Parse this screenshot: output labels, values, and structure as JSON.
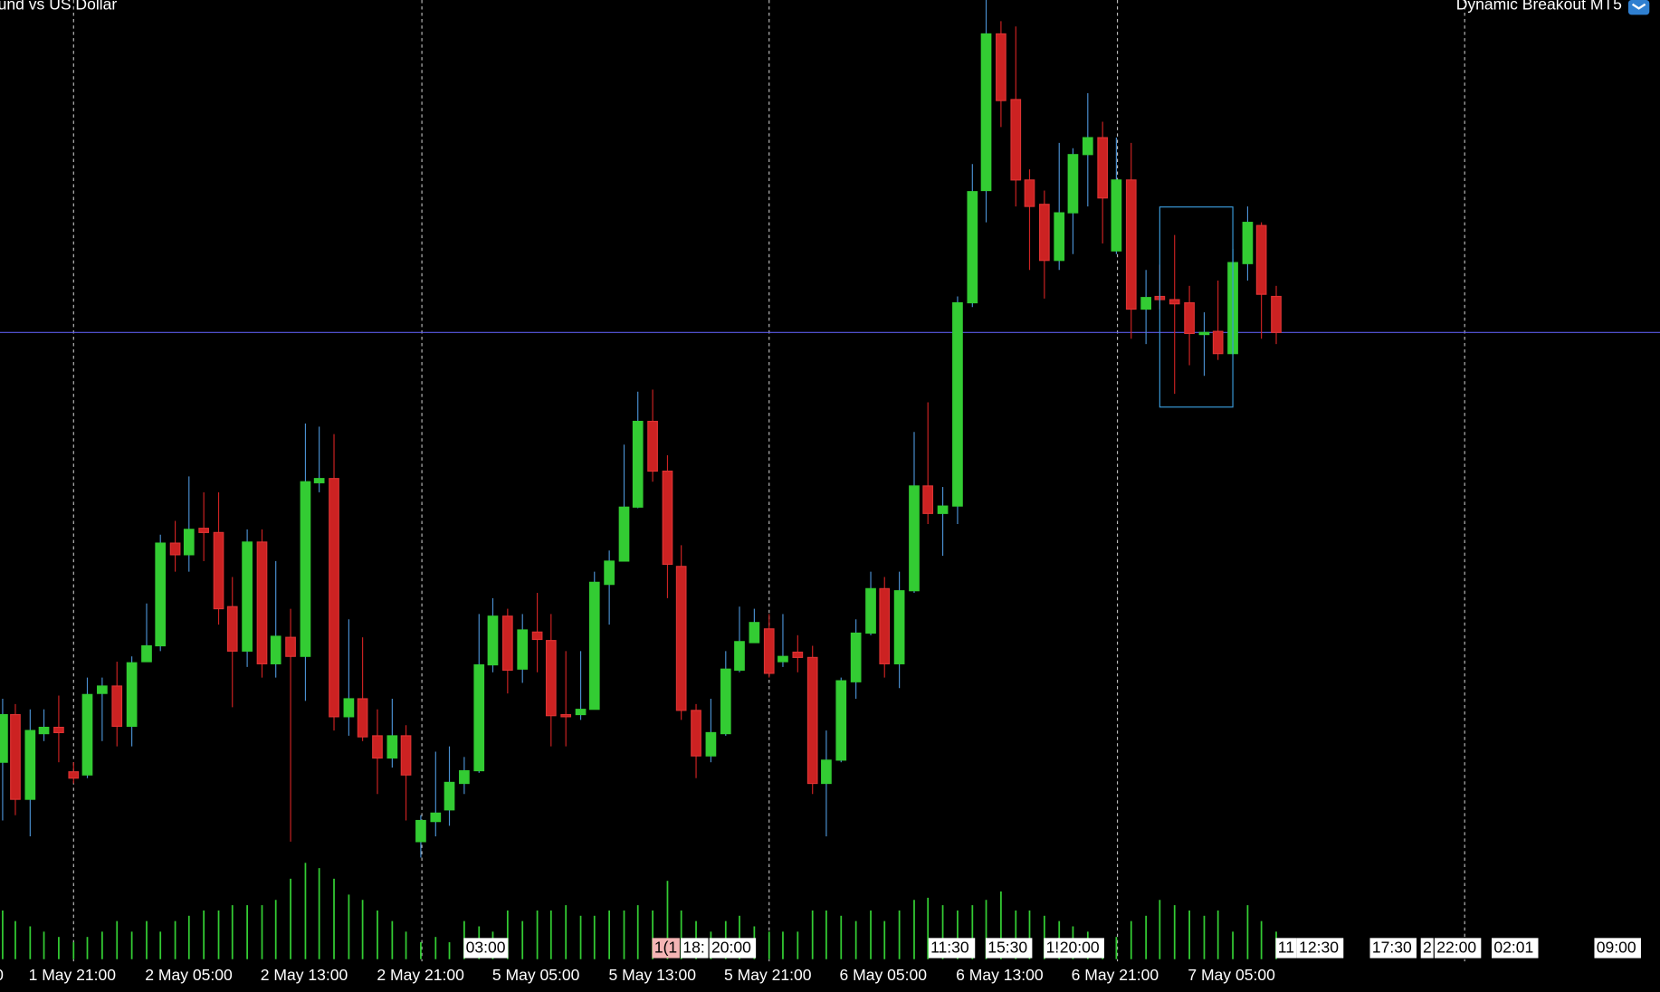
{
  "header": {
    "symbol": "und vs US Dollar",
    "indicator": "Dynamic Breakout MT5"
  },
  "time_axis": {
    "labels": [
      "0",
      "1 May 21:00",
      "2 May 05:00",
      "2 May 13:00",
      "2 May 21:00",
      "5 May 05:00",
      "5 May 13:00",
      "5 May 21:00",
      "6 May 05:00",
      "6 May 13:00",
      "6 May 21:00",
      "7 May 05:00"
    ]
  },
  "time_tags": [
    "03:00",
    "1(1",
    "18:",
    "20:00",
    "11:30",
    "15:30",
    "1!",
    "20:00",
    "11",
    "12:30",
    "17:30",
    "2",
    "22:00",
    "02:01",
    "09:00"
  ]
}
